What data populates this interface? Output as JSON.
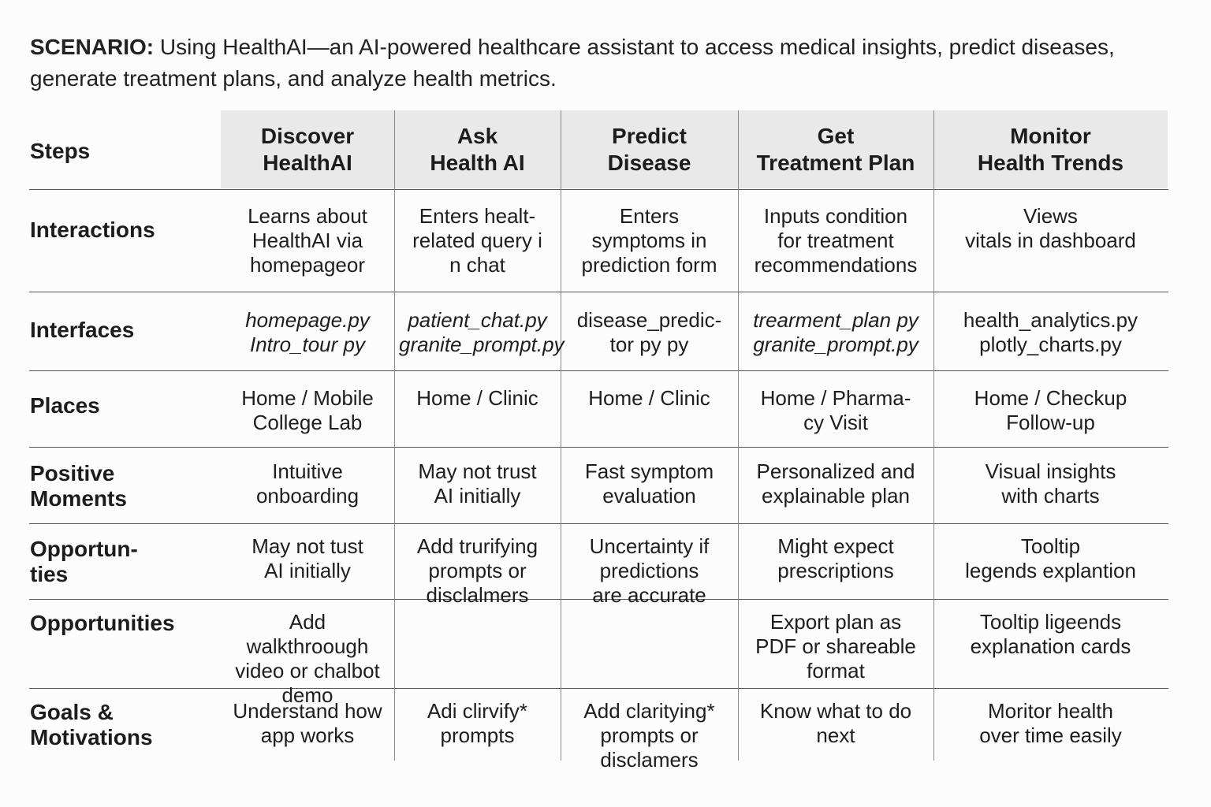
{
  "scenario": {
    "label": "SCENARIO:",
    "text": " Using HealthAI—an AI-powered healthcare assistant to access medical insights, predict diseases, generate treatment plans, and analyze health metrics."
  },
  "table": {
    "steps_label": "Steps",
    "columns": [
      "Discover\nHealthAI",
      "Ask\nHealth AI",
      "Predict\nDisease",
      "Get\nTreatment Plan",
      "Monitor\nHealth Trends"
    ],
    "rows": [
      {
        "label": "Interactions",
        "cells": [
          "Learns about\nHealthAI via\nhomepageor",
          "Enters healt-\nrelated query i\nn chat",
          "Enters\nsymptoms in\nprediction form",
          "Inputs condition\nfor treatment\nrecommendations",
          "Views\nvitals in dashboard"
        ]
      },
      {
        "label": "Interfaces",
        "cells": [
          "homepage.py\nIntro_tour py",
          "patient_chat.py\ngranite_prompt.py",
          "disease_predic-\ntor py py",
          "trearment_plan py\ngranite_prompt.py",
          "health_analytics.py\nplotly_charts.py"
        ]
      },
      {
        "label": "Places",
        "cells": [
          "Home / Mobile\nCollege Lab",
          "Home / Clinic",
          "Home / Clinic",
          "Home / Pharma-\ncy Visit",
          "Home / Checkup\nFollow-up"
        ]
      },
      {
        "label": "Positive\nMoments",
        "cells": [
          "Intuitive\nonboarding",
          "May not trust\nAI initially",
          "Fast symptom\nevaluation",
          "Personalized and\nexplainable plan",
          "Visual insights\nwith charts"
        ]
      },
      {
        "label": "Opportun-\nties",
        "cells": [
          "May not tust\nAI initially",
          "Add trurifying\nprompts or\ndisclalmers",
          "Uncertainty if\npredictions\nare accurate",
          "Might expect\nprescriptions",
          "Tooltip\nlegends explantion"
        ]
      },
      {
        "label": "Opportunities",
        "cells": [
          "Add walkthroough\nvideo or chalbot\ndemo",
          "",
          "",
          "Export plan as\nPDF or shareable\nformat",
          "Tooltip ligeends\nexplanation cards"
        ]
      },
      {
        "label": "Goals &\nMotivations",
        "cells": [
          "Understand how\napp works",
          "Adi  clirvify*\nprompts",
          "Add claritying*\nprompts or\ndisclamers",
          "Know what to do\nnext",
          "Moritor health\nover time easily"
        ]
      }
    ]
  }
}
